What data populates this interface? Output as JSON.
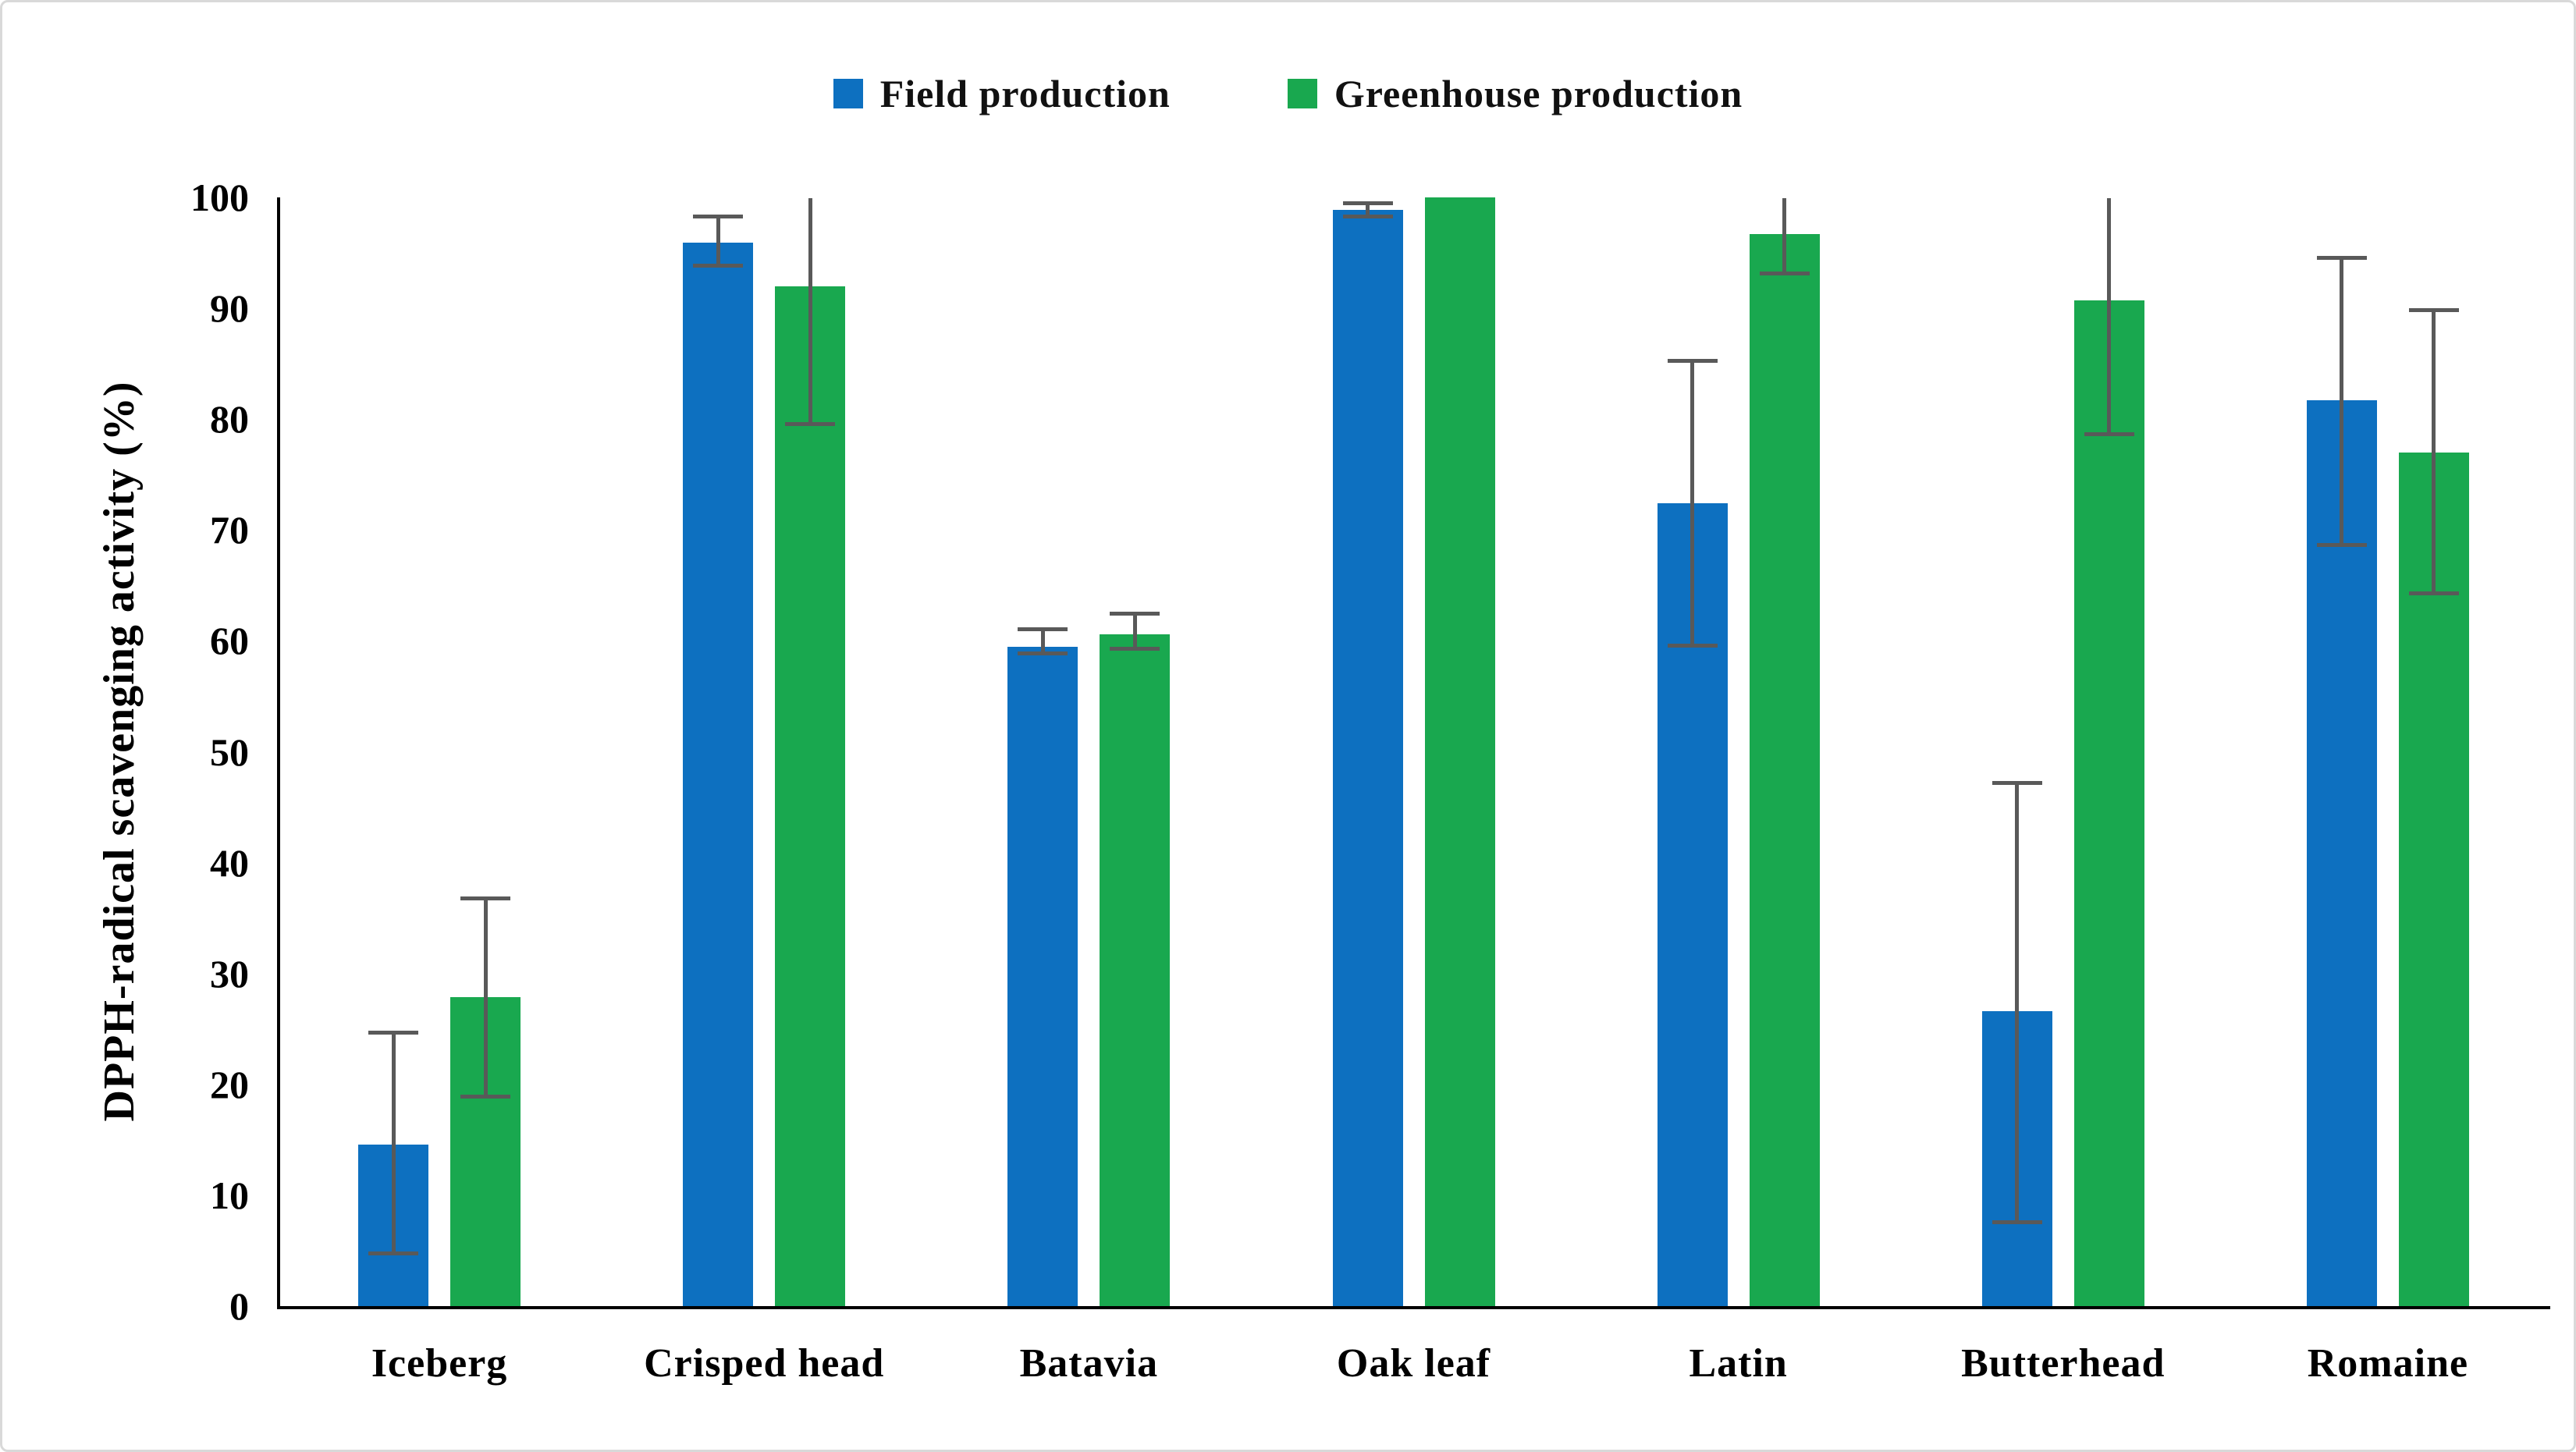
{
  "figure": {
    "type_label": "grouped bar chart"
  },
  "chart_data": {
    "type": "bar",
    "title": "",
    "categories": [
      "Iceberg",
      "Crisped head",
      "Batavia",
      "Oak leaf",
      "Latin",
      "Butterhead",
      "Romaine"
    ],
    "series": [
      {
        "name": "Field production",
        "color": "#0d70c0",
        "values": [
          14.6,
          95.9,
          59.5,
          98.9,
          72.4,
          26.6,
          81.7
        ],
        "error_low": [
          4.8,
          93.9,
          58.9,
          98.3,
          59.6,
          7.6,
          68.7
        ],
        "error_high": [
          24.7,
          98.3,
          61.1,
          99.5,
          85.3,
          47.2,
          94.6
        ],
        "error_cap_top": [
          true,
          true,
          true,
          true,
          true,
          true,
          true
        ]
      },
      {
        "name": "Greenhouse production",
        "color": "#19a84f",
        "values": [
          27.9,
          92.0,
          60.6,
          100.0,
          96.7,
          90.7,
          77.0
        ],
        "error_low": [
          18.9,
          79.6,
          59.3,
          null,
          93.2,
          78.7,
          64.3
        ],
        "error_high": [
          36.8,
          99.9,
          62.5,
          null,
          99.9,
          99.9,
          89.9
        ],
        "error_cap_top": [
          true,
          false,
          true,
          false,
          false,
          false,
          true
        ]
      }
    ],
    "ylabel": "DPPH-radical scavenging activity (%)",
    "ylim": [
      0,
      100
    ],
    "ytick_step": 10,
    "ytick_labels": [
      "0",
      "10",
      "20",
      "30",
      "40",
      "50",
      "60",
      "70",
      "80",
      "90",
      "100"
    ],
    "legend_position": "top",
    "grid": false,
    "error_bar_color": "#595959",
    "axis_color": "#000000"
  }
}
